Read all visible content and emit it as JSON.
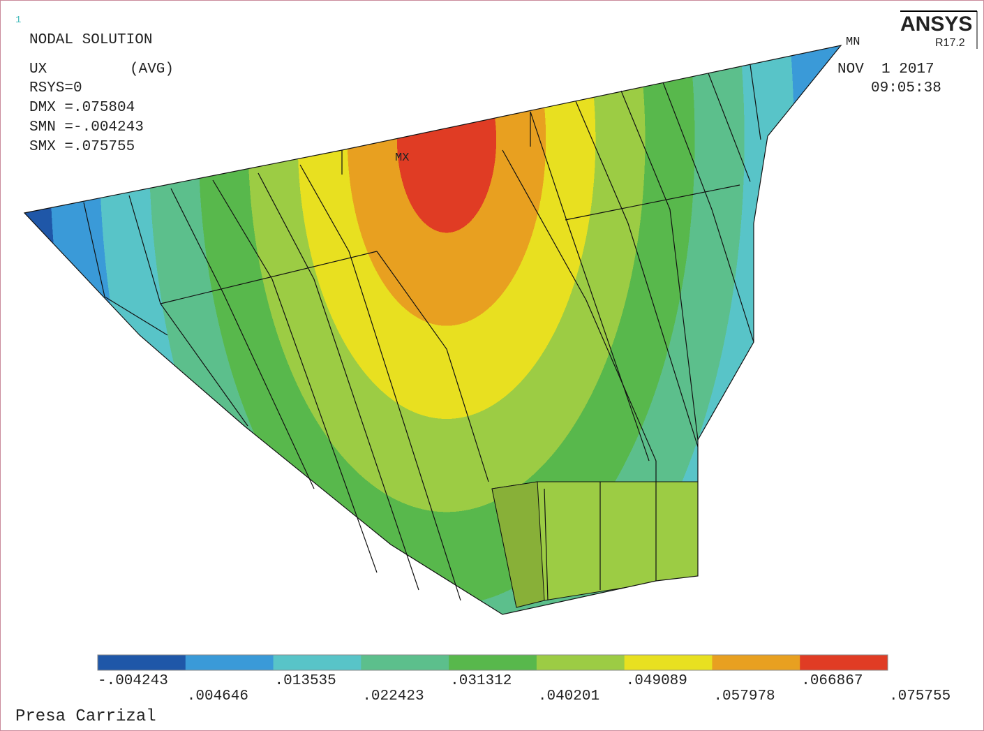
{
  "header": {
    "window": "1",
    "title": "NODAL SOLUTION",
    "quantity": "UX",
    "averaging": "(AVG)",
    "info": [
      "RSYS=0",
      "DMX =.075804",
      "SMN =-.004243",
      "SMX =.075755"
    ],
    "logo": "ANSYS",
    "version": "R17.2",
    "date": "NOV  1 2017",
    "time": "09:05:38"
  },
  "markers": {
    "min": "MN",
    "max": "MX"
  },
  "legend": {
    "colors": [
      "#1f57a8",
      "#3a9ad8",
      "#58c4c8",
      "#5cbf8c",
      "#58b84c",
      "#9ccc44",
      "#e8e020",
      "#e8a020",
      "#e03c24"
    ],
    "labels": [
      "-.004243",
      ".004646",
      ".013535",
      ".022423",
      ".031312",
      ".040201",
      ".049089",
      ".057978",
      ".066867",
      ".075755"
    ]
  },
  "footer": "Presa Carrizal"
}
